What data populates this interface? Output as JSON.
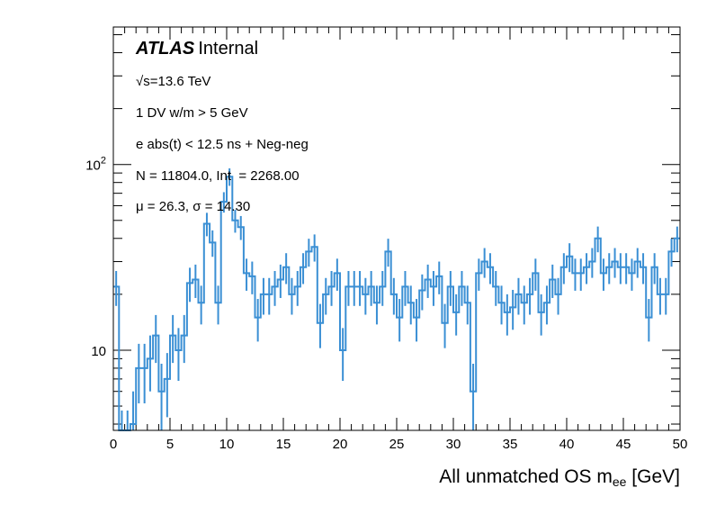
{
  "chart_data": {
    "type": "histogram",
    "title": "",
    "experiment_label": "ATLAS",
    "experiment_status": "Internal",
    "annotations": [
      "√s=13.6 TeV",
      "1 DV w/m > 5 GeV",
      "e abs(t) < 12.5 ns + Neg-neg",
      "N = 11804.0, Int  = 2268.00",
      "μ = 26.3, σ = 14.30"
    ],
    "xlabel_main": "All unmatched OS m",
    "xlabel_sub": "ee",
    "xlabel_unit": " [GeV]",
    "ylabel": "",
    "xlim": [
      0,
      50
    ],
    "ylim": [
      3.7,
      550
    ],
    "yscale": "log",
    "x_ticks": [
      "0",
      "5",
      "10",
      "15",
      "20",
      "25",
      "30",
      "35",
      "40",
      "45",
      "50"
    ],
    "y_tick_labels": [
      {
        "value": 10,
        "label": "10"
      },
      {
        "value": 100,
        "label": "10^2"
      }
    ],
    "bin_width": 0.5,
    "bin_low_edges": [
      0,
      0.5,
      1,
      1.5,
      2,
      2.5,
      3,
      3.5,
      4,
      4.5,
      5,
      5.5,
      6,
      6.5,
      7,
      7.5,
      8,
      8.5,
      9,
      9.5,
      10,
      10.5,
      11,
      11.5,
      12,
      12.5,
      13,
      13.5,
      14,
      14.5,
      15,
      15.5,
      16,
      16.5,
      17,
      17.5,
      18,
      18.5,
      19,
      19.5,
      20,
      20.5,
      21,
      21.5,
      22,
      22.5,
      23,
      23.5,
      24,
      24.5,
      25,
      25.5,
      26,
      26.5,
      27,
      27.5,
      28,
      28.5,
      29,
      29.5,
      30,
      30.5,
      31,
      31.5,
      32,
      32.5,
      33,
      33.5,
      34,
      34.5,
      35,
      35.5,
      36,
      36.5,
      37,
      37.5,
      38,
      38.5,
      39,
      39.5,
      40,
      40.5,
      41,
      41.5,
      42,
      42.5,
      43,
      43.5,
      44,
      44.5,
      45,
      45.5,
      46,
      46.5,
      47,
      47.5,
      48,
      48.5,
      49,
      49.5
    ],
    "values": [
      22,
      3,
      3,
      4,
      8,
      8,
      9,
      12,
      6,
      7,
      12,
      10,
      12,
      23,
      24,
      18,
      48,
      38,
      18,
      63,
      86,
      50,
      46,
      26,
      25,
      15,
      20,
      20,
      22,
      24,
      28,
      20,
      22,
      28,
      34,
      36,
      14,
      20,
      22,
      26,
      10,
      22,
      22,
      22,
      20,
      22,
      18,
      22,
      34,
      20,
      15,
      22,
      18,
      15,
      21,
      24,
      22,
      25,
      14,
      22,
      16,
      22,
      18,
      6,
      26,
      30,
      28,
      22,
      18,
      16,
      17,
      20,
      18,
      20,
      26,
      16,
      18,
      24,
      20,
      28,
      32,
      26,
      26,
      28,
      30,
      40,
      26,
      28,
      30,
      28,
      28,
      26,
      30,
      28,
      15,
      28,
      20,
      20,
      34,
      40
    ],
    "series_color": "#3a8fd4"
  }
}
